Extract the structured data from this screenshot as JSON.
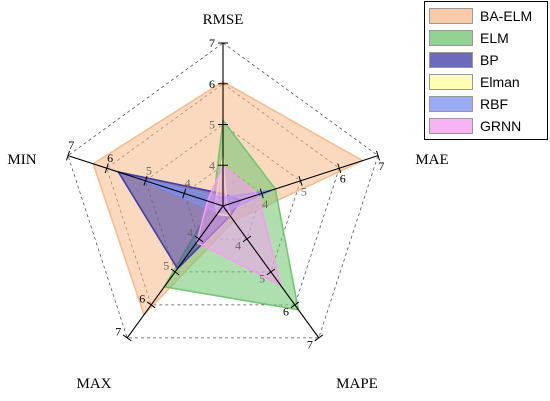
{
  "chart_data": {
    "type": "radar",
    "axes": [
      "RMSE",
      "MAE",
      "MAPE",
      "MAX",
      "MIN"
    ],
    "range": [
      3,
      7
    ],
    "ticks": [
      3,
      4,
      5,
      6,
      7
    ],
    "grid": true,
    "legend_position": "top-right",
    "series": [
      {
        "name": "BA-ELM",
        "values": [
          6.05,
          6.6,
          3.45,
          6.3,
          6.35
        ],
        "color": "#f7b98b"
      },
      {
        "name": "ELM",
        "values": [
          5.1,
          4.35,
          6.15,
          5.45,
          3.25
        ],
        "color": "#6ec46e"
      },
      {
        "name": "BP",
        "values": [
          3.3,
          3.45,
          3.3,
          4.9,
          5.7
        ],
        "color": "#3a39a6"
      },
      {
        "name": "Elman",
        "values": [
          4.2,
          3.1,
          3.3,
          3.25,
          3.2
        ],
        "color": "#ffff99"
      },
      {
        "name": "RBF",
        "values": [
          3.2,
          4.25,
          3.15,
          3.2,
          5.1
        ],
        "color": "#7890f0"
      },
      {
        "name": "GRNN",
        "values": [
          4.0,
          3.9,
          5.4,
          4.1,
          3.4
        ],
        "color": "#f59cf2"
      }
    ]
  }
}
